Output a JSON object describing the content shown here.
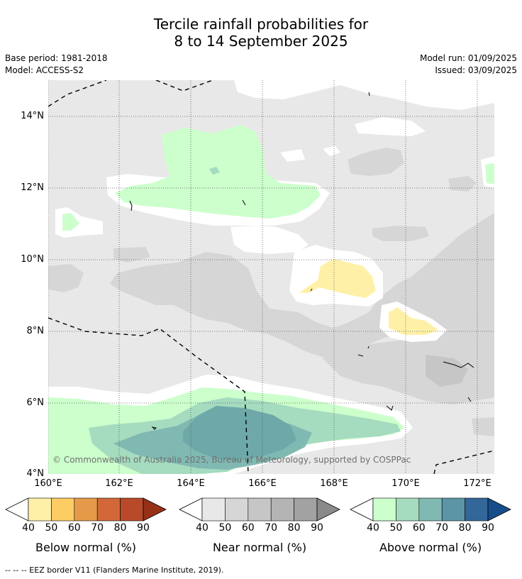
{
  "title_line1": "Tercile rainfall probabilities for",
  "title_line2": "8 to 14 September 2025",
  "base_period": "Base period: 1981-2018",
  "model": "Model: ACCESS-S2",
  "model_run": "Model run: 01/09/2025",
  "issued": "Issued: 03/09/2025",
  "lat_labels": [
    "14°N",
    "12°N",
    "10°N",
    "8°N",
    "6°N",
    "4°N"
  ],
  "lon_labels": [
    "160°E",
    "162°E",
    "164°E",
    "166°E",
    "168°E",
    "170°E",
    "172°E"
  ],
  "copyright": "© Commonwealth of Australia 2025, Bureau of Meteorology, supported by COSPPac",
  "colorbars": [
    {
      "label": "Below normal (%)",
      "ticks": [
        "40",
        "50",
        "60",
        "70",
        "80",
        "90"
      ],
      "colors": [
        "#fff0a8",
        "#fdcc65",
        "#e59a4a",
        "#d2683a",
        "#b84a2a",
        "#963118"
      ]
    },
    {
      "label": "Near normal (%)",
      "ticks": [
        "40",
        "50",
        "60",
        "70",
        "80",
        "90"
      ],
      "colors": [
        "#e8e8e8",
        "#d6d6d6",
        "#c6c6c6",
        "#b4b4b4",
        "#a2a2a2",
        "#8a8a8a"
      ]
    },
    {
      "label": "Above normal (%)",
      "ticks": [
        "40",
        "50",
        "60",
        "70",
        "80",
        "90"
      ],
      "colors": [
        "#ccffcc",
        "#a5dbbf",
        "#80b9b2",
        "#5c96a6",
        "#336699",
        "#174e8a"
      ]
    }
  ],
  "footer": "-- -- -- EEZ border V11 (Flanders Marine Institute, 2019)."
}
